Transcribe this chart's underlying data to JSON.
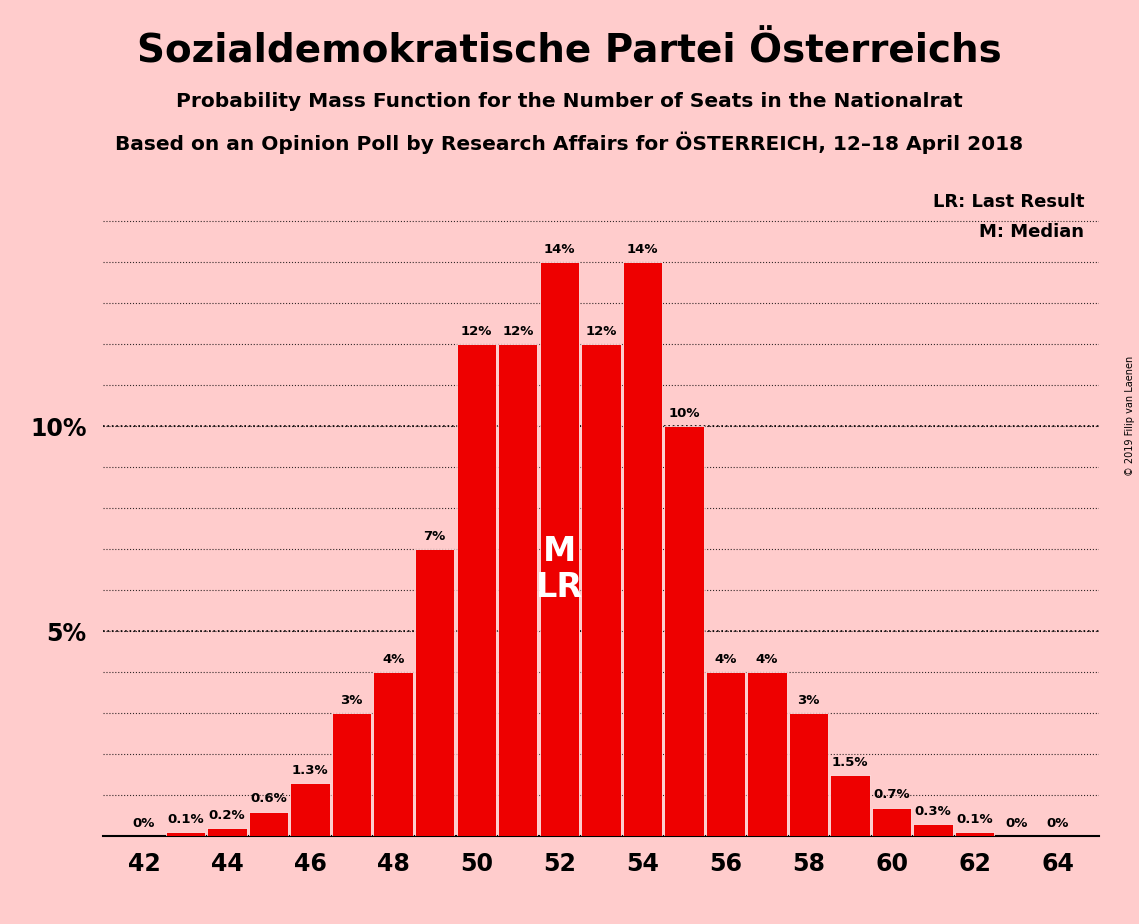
{
  "title": "Sozialdemokratische Partei Österreichs",
  "subtitle1": "Probability Mass Function for the Number of Seats in the Nationalrat",
  "subtitle2": "Based on an Opinion Poll by Research Affairs for ÖSTERREICH, 12–18 April 2018",
  "copyright": "© 2019 Filip van Laenen",
  "seats": [
    42,
    43,
    44,
    45,
    46,
    47,
    48,
    49,
    50,
    51,
    52,
    53,
    54,
    55,
    56,
    57,
    58,
    59,
    60,
    61,
    62,
    63,
    64
  ],
  "probabilities": [
    0.0,
    0.1,
    0.2,
    0.6,
    1.3,
    3.0,
    4.0,
    7.0,
    12.0,
    12.0,
    14.0,
    12.0,
    14.0,
    10.0,
    4.0,
    4.0,
    3.0,
    1.5,
    0.7,
    0.3,
    0.1,
    0.0,
    0.0
  ],
  "bar_color": "#ee0000",
  "background_color": "#ffcccc",
  "median_seat": 52,
  "last_result_seat": 52,
  "legend_lr": "LR: Last Result",
  "legend_m": "M: Median",
  "xlabel_seats": [
    42,
    44,
    46,
    48,
    50,
    52,
    54,
    56,
    58,
    60,
    62,
    64
  ],
  "ylim": [
    0,
    16.0
  ],
  "grid_yticks": [
    1.0,
    2.0,
    3.0,
    4.0,
    5.0,
    6.0,
    7.0,
    8.0,
    9.0,
    10.0,
    11.0,
    12.0,
    13.0,
    14.0,
    15.0
  ],
  "label_yticks": [
    5.0,
    10.0
  ],
  "label_yticklabels": [
    "5%",
    "10%"
  ]
}
